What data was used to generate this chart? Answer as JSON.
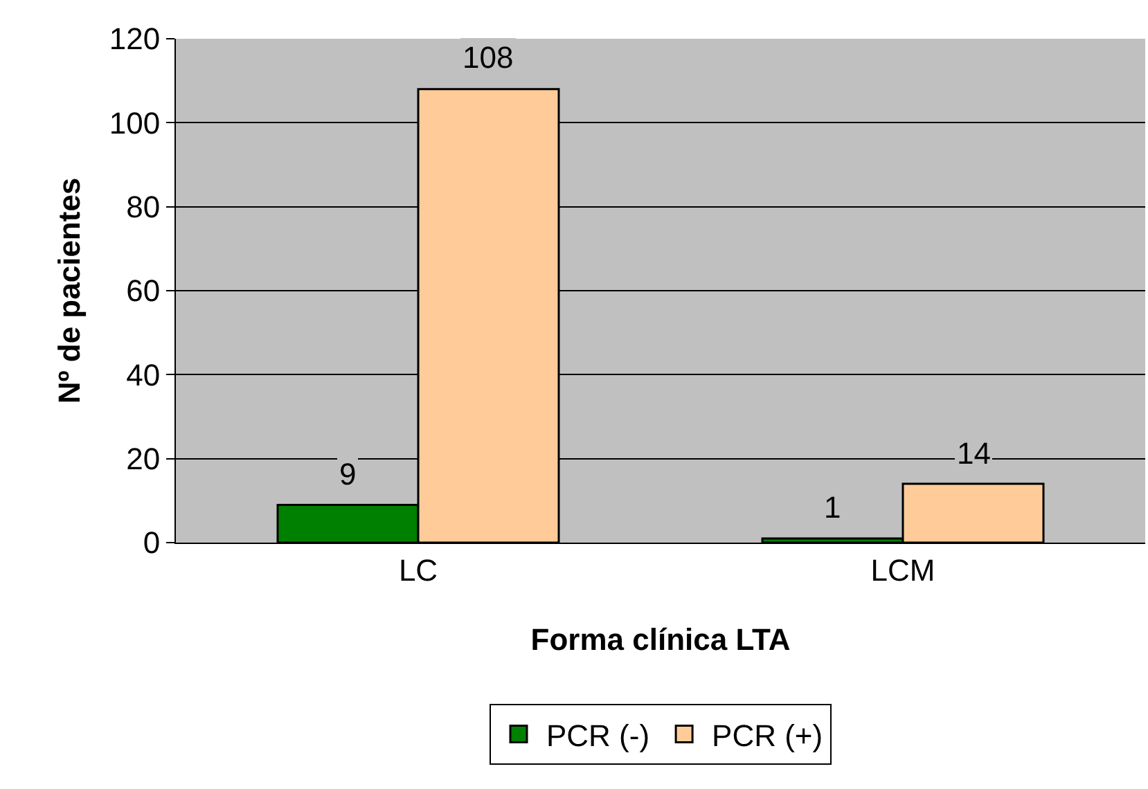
{
  "chart_data": {
    "type": "bar",
    "xlabel": "Forma clínica LTA",
    "ylabel": "Nº de pacientes",
    "categories": [
      "LC",
      "LCM"
    ],
    "series": [
      {
        "name": "PCR (-)",
        "color": "#008000",
        "values": [
          9,
          1
        ]
      },
      {
        "name": "PCR (+)",
        "color": "#ffcc99",
        "values": [
          108,
          14
        ]
      }
    ],
    "ylim": [
      0,
      120
    ],
    "yticks": [
      0,
      20,
      40,
      60,
      80,
      100,
      120
    ],
    "grid": "y",
    "legend": "bottom",
    "data_labels": true
  }
}
